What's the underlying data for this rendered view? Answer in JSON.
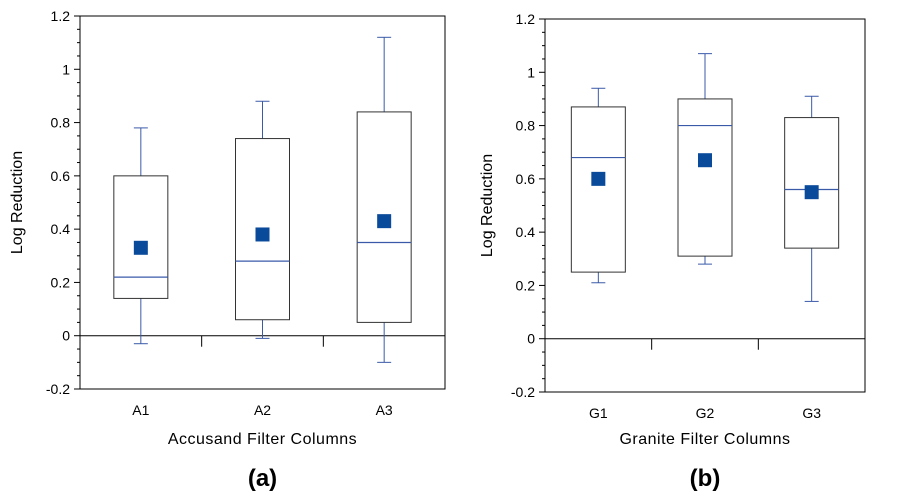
{
  "chart_data": [
    {
      "type": "box",
      "panel_label": "(a)",
      "xlabel": "Accusand Filter Columns",
      "ylabel": "Log Reduction",
      "ylim": [
        -0.2,
        1.2
      ],
      "yticks": [
        -0.2,
        0,
        0.2,
        0.4,
        0.6,
        0.8,
        1,
        1.2
      ],
      "ytick_labels": [
        "-0.2",
        "0",
        "0.2",
        "0.4",
        "0.6",
        "0.8",
        "1",
        "1.2"
      ],
      "reference_line": 0,
      "grid": false,
      "categories": [
        "A1",
        "A2",
        "A3"
      ],
      "boxes": [
        {
          "category": "A1",
          "whisker_low": -0.03,
          "q1": 0.14,
          "median": 0.22,
          "q3": 0.6,
          "whisker_high": 0.78,
          "mean": 0.33
        },
        {
          "category": "A2",
          "whisker_low": -0.01,
          "q1": 0.06,
          "median": 0.28,
          "q3": 0.74,
          "whisker_high": 0.88,
          "mean": 0.38
        },
        {
          "category": "A3",
          "whisker_low": -0.1,
          "q1": 0.05,
          "median": 0.35,
          "q3": 0.84,
          "whisker_high": 1.12,
          "mean": 0.43
        }
      ],
      "colors": {
        "box": "#333333",
        "median": "#3a5aa8",
        "whisker": "#3a5aa8",
        "mean_marker": "#0a4a9a"
      }
    },
    {
      "type": "box",
      "panel_label": "(b)",
      "xlabel": "Granite Filter Columns",
      "ylabel": "Log Reduction",
      "ylim": [
        -0.2,
        1.2
      ],
      "yticks": [
        -0.2,
        0,
        0.2,
        0.4,
        0.6,
        0.8,
        1,
        1.2
      ],
      "ytick_labels": [
        "-0.2",
        "0",
        "0.2",
        "0.4",
        "0.6",
        "0.8",
        "1",
        "1.2"
      ],
      "reference_line": 0,
      "grid": false,
      "categories": [
        "G1",
        "G2",
        "G3"
      ],
      "boxes": [
        {
          "category": "G1",
          "whisker_low": 0.21,
          "q1": 0.25,
          "median": 0.68,
          "q3": 0.87,
          "whisker_high": 0.94,
          "mean": 0.6
        },
        {
          "category": "G2",
          "whisker_low": 0.28,
          "q1": 0.31,
          "median": 0.8,
          "q3": 0.9,
          "whisker_high": 1.07,
          "mean": 0.67
        },
        {
          "category": "G3",
          "whisker_low": 0.14,
          "q1": 0.34,
          "median": 0.56,
          "q3": 0.83,
          "whisker_high": 0.91,
          "mean": 0.55
        }
      ],
      "colors": {
        "box": "#333333",
        "median": "#3a5aa8",
        "whisker": "#3a5aa8",
        "mean_marker": "#0a4a9a"
      }
    }
  ]
}
